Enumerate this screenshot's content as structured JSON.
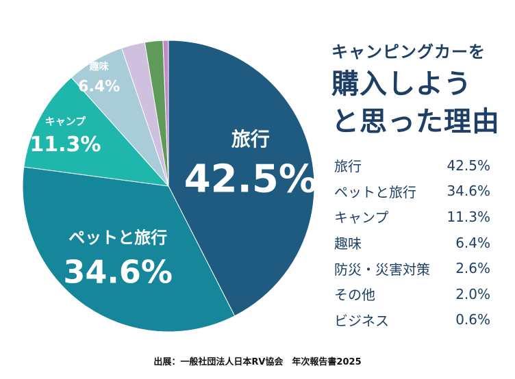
{
  "title": {
    "line1": "キャンピングカーを",
    "line2": "購入しよう",
    "line3": "と思った理由"
  },
  "chart_data": {
    "type": "pie",
    "title": "キャンピングカーを購入しようと思った理由",
    "categories": [
      "旅行",
      "ペットと旅行",
      "キャンプ",
      "趣味",
      "防災・災害対策",
      "その他",
      "ビジネス"
    ],
    "values": [
      42.5,
      34.6,
      11.3,
      6.4,
      2.6,
      2.0,
      0.6
    ],
    "value_labels": [
      "42.5%",
      "34.6%",
      "11.3%",
      "6.4%",
      "2.6%",
      "2.0%",
      "0.6%"
    ],
    "pie_labels": [
      "旅行",
      "ペットと旅行",
      "キャンプ",
      "趣味",
      "",
      "",
      ""
    ],
    "pie_value_labels": [
      "42.5%",
      "34.6%",
      "11.3%",
      "6.4%",
      "",
      "",
      ""
    ],
    "colors": [
      "#1f5a80",
      "#16879a",
      "#1fb6ac",
      "#a8cdd8",
      "#cfc0e0",
      "#5f9a5a",
      "#c38ac8"
    ],
    "label_colors": [
      "#ffffff",
      "#ffffff",
      "#ffffff",
      "#1d3f66",
      "#ffffff",
      "#ffffff",
      "#ffffff"
    ],
    "start": "top, clockwise",
    "legend_position": "right"
  },
  "source": "出展：一般社団法人日本RV協会　年次報告書2025"
}
